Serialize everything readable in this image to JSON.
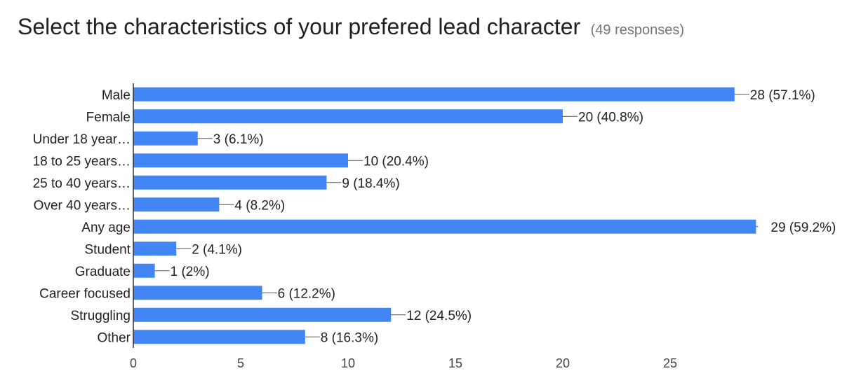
{
  "chart_data": {
    "type": "bar",
    "orientation": "horizontal",
    "title": "Select the characteristics of your prefered lead character",
    "subtitle": "(49 responses)",
    "categories": [
      "Male",
      "Female",
      "Under 18 year…",
      "18 to 25 years…",
      "25 to 40 years…",
      "Over 40 years…",
      "Any age",
      "Student",
      "Graduate",
      "Career focused",
      "Struggling",
      "Other"
    ],
    "values": [
      28,
      20,
      3,
      10,
      9,
      4,
      29,
      2,
      1,
      6,
      12,
      8
    ],
    "data_labels": [
      "28 (57.1%)",
      "20 (40.8%)",
      "3 (6.1%)",
      "10 (20.4%)",
      "9 (18.4%)",
      "4 (8.2%)",
      "29 (59.2%)",
      "2 (4.1%)",
      "1 (2%)",
      "6 (12.2%)",
      "12 (24.5%)",
      "8 (16.3%)"
    ],
    "xticks": [
      0,
      5,
      10,
      15,
      20,
      25
    ],
    "xlim": [
      0,
      29
    ],
    "grid": false,
    "bar_color": "#4285f4"
  }
}
